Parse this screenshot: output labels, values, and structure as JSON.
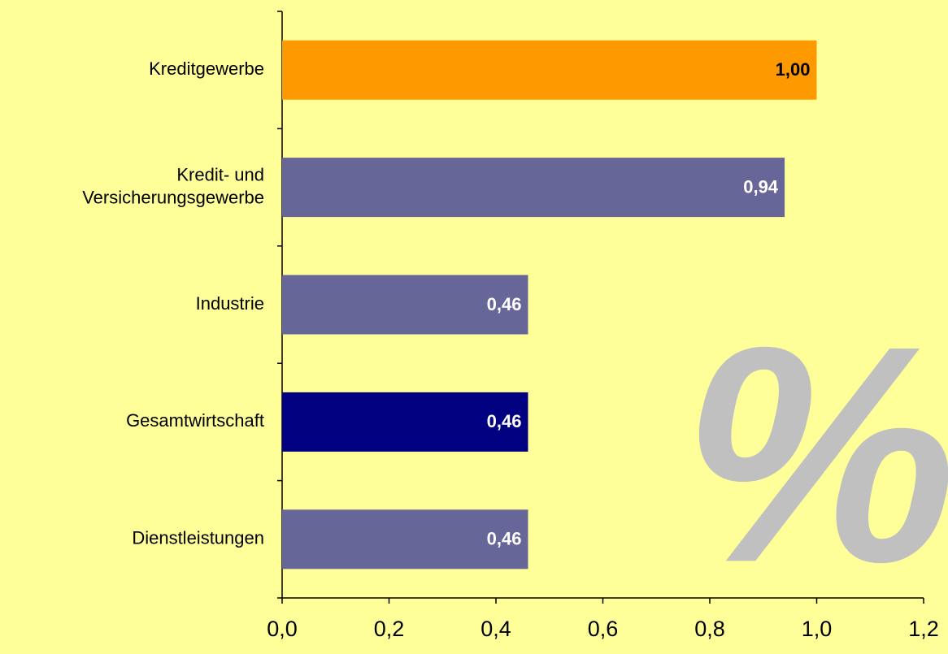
{
  "chart_data": {
    "type": "bar",
    "orientation": "horizontal",
    "categories": [
      "Kreditgewerbe",
      "Kredit- und\nVersicherungsgewerbe",
      "Industrie",
      "Gesamtwirtschaft",
      "Dienstleistungen"
    ],
    "values": [
      1.0,
      0.94,
      0.46,
      0.46,
      0.46
    ],
    "value_labels": [
      "1,00",
      "0,94",
      "0,46",
      "0,46",
      "0,46"
    ],
    "colors": [
      "#ff9900",
      "#666699",
      "#666699",
      "#000080",
      "#666699"
    ],
    "value_label_colors": [
      "#000000",
      "#ffffff",
      "#ffffff",
      "#ffffff",
      "#ffffff"
    ],
    "xlim": [
      0,
      1.2
    ],
    "xticks": [
      {
        "value": 0,
        "label": "0,0"
      },
      {
        "value": 0.2,
        "label": "0,2"
      },
      {
        "value": 0.4,
        "label": "0,4"
      },
      {
        "value": 0.6,
        "label": "0,6"
      },
      {
        "value": 0.8,
        "label": "0,8"
      },
      {
        "value": 1.0,
        "label": "1,0"
      },
      {
        "value": 1.2,
        "label": "1,2"
      }
    ],
    "grid": false,
    "watermark": "%"
  }
}
